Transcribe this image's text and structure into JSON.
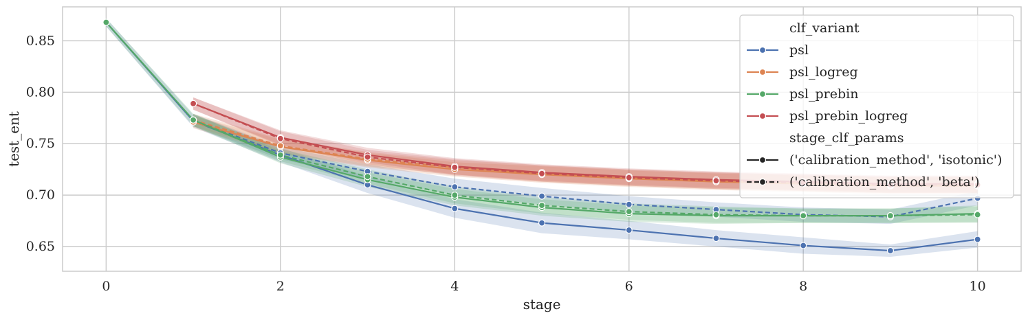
{
  "chart_data": {
    "type": "line",
    "xlabel": "stage",
    "ylabel": "test_ent",
    "xlim": [
      -0.5,
      10.5
    ],
    "ylim": [
      0.626,
      0.883
    ],
    "xticks": [
      0,
      2,
      4,
      6,
      8,
      10
    ],
    "yticks": [
      0.65,
      0.7,
      0.75,
      0.8,
      0.85
    ],
    "xtick_labels": [
      "0",
      "2",
      "4",
      "6",
      "8",
      "10"
    ],
    "ytick_labels": [
      "0.65",
      "0.70",
      "0.75",
      "0.80",
      "0.85"
    ],
    "grid": true,
    "legend_position": "top-right",
    "legend": {
      "hue_title": "clf_variant",
      "style_title": "stage_clf_params",
      "style_entries": [
        {
          "label": "('calibration_method', 'isotonic')",
          "dash": "solid"
        },
        {
          "label": "('calibration_method', 'beta')",
          "dash": "dashed"
        }
      ]
    },
    "series": [
      {
        "name": "psl",
        "color": "#4c72b0",
        "dash": "solid",
        "x": [
          0,
          1,
          2,
          3,
          4,
          5,
          6,
          7,
          8,
          9,
          10
        ],
        "y": [
          0.868,
          0.772,
          0.739,
          0.71,
          0.687,
          0.673,
          0.666,
          0.658,
          0.651,
          0.646,
          0.657
        ],
        "band": [
          0.004,
          0.006,
          0.007,
          0.008,
          0.009,
          0.01,
          0.009,
          0.008,
          0.008,
          0.006,
          0.008
        ]
      },
      {
        "name": "psl",
        "color": "#4c72b0",
        "dash": "dashed",
        "x": [
          1,
          2,
          3,
          4,
          5,
          6,
          7,
          8,
          9,
          10
        ],
        "y": [
          0.773,
          0.741,
          0.723,
          0.708,
          0.699,
          0.691,
          0.686,
          0.681,
          0.679,
          0.697
        ],
        "band": [
          0.006,
          0.006,
          0.007,
          0.008,
          0.008,
          0.008,
          0.007,
          0.007,
          0.007,
          0.007
        ]
      },
      {
        "name": "psl_logreg",
        "color": "#dd8452",
        "dash": "solid",
        "x": [
          1,
          2,
          3,
          4,
          5,
          6,
          7,
          8,
          9,
          10
        ],
        "y": [
          0.771,
          0.747,
          0.734,
          0.725,
          0.72,
          0.716,
          0.713,
          0.711,
          0.709,
          0.709
        ],
        "band": [
          0.006,
          0.007,
          0.007,
          0.007,
          0.008,
          0.008,
          0.008,
          0.008,
          0.008,
          0.008
        ]
      },
      {
        "name": "psl_logreg",
        "color": "#dd8452",
        "dash": "dashed",
        "x": [
          1,
          2,
          3,
          4,
          5,
          6,
          7,
          8,
          9,
          10
        ],
        "y": [
          0.773,
          0.748,
          0.735,
          0.727,
          0.721,
          0.717,
          0.714,
          0.712,
          0.71,
          0.71
        ],
        "band": [
          0.006,
          0.007,
          0.007,
          0.007,
          0.008,
          0.008,
          0.008,
          0.008,
          0.008,
          0.008
        ]
      },
      {
        "name": "psl_prebin",
        "color": "#55a868",
        "dash": "solid",
        "x": [
          0,
          1,
          2,
          3,
          4,
          5,
          6,
          7,
          8,
          9,
          10
        ],
        "y": [
          0.868,
          0.773,
          0.737,
          0.715,
          0.698,
          0.688,
          0.682,
          0.68,
          0.68,
          0.68,
          0.682
        ],
        "band": [
          0.004,
          0.006,
          0.006,
          0.007,
          0.008,
          0.008,
          0.008,
          0.008,
          0.007,
          0.007,
          0.008
        ]
      },
      {
        "name": "psl_prebin",
        "color": "#55a868",
        "dash": "dashed",
        "x": [
          1,
          2,
          3,
          4,
          5,
          6,
          7,
          8,
          9,
          10
        ],
        "y": [
          0.773,
          0.739,
          0.718,
          0.7,
          0.69,
          0.684,
          0.681,
          0.68,
          0.68,
          0.681
        ],
        "band": [
          0.006,
          0.006,
          0.007,
          0.008,
          0.008,
          0.008,
          0.008,
          0.007,
          0.007,
          0.008
        ]
      },
      {
        "name": "psl_prebin_logreg",
        "color": "#c44e52",
        "dash": "solid",
        "x": [
          1,
          2,
          3,
          4,
          5,
          6,
          7,
          8,
          9,
          10
        ],
        "y": [
          0.789,
          0.756,
          0.739,
          0.728,
          0.722,
          0.718,
          0.715,
          0.713,
          0.711,
          0.711
        ],
        "band": [
          0.006,
          0.007,
          0.007,
          0.008,
          0.008,
          0.008,
          0.008,
          0.008,
          0.008,
          0.008
        ]
      },
      {
        "name": "psl_prebin_logreg",
        "color": "#c44e52",
        "dash": "dashed",
        "x": [
          1,
          2,
          3,
          4,
          5,
          6,
          7,
          8,
          9,
          10
        ],
        "y": [
          0.789,
          0.755,
          0.737,
          0.727,
          0.721,
          0.717,
          0.714,
          0.712,
          0.71,
          0.71
        ],
        "band": [
          0.006,
          0.007,
          0.007,
          0.008,
          0.008,
          0.008,
          0.008,
          0.008,
          0.008,
          0.008
        ]
      }
    ],
    "legend_hue_entries": [
      {
        "label": "psl",
        "color": "#4c72b0"
      },
      {
        "label": "psl_logreg",
        "color": "#dd8452"
      },
      {
        "label": "psl_prebin",
        "color": "#55a868"
      },
      {
        "label": "psl_prebin_logreg",
        "color": "#c44e52"
      }
    ]
  }
}
